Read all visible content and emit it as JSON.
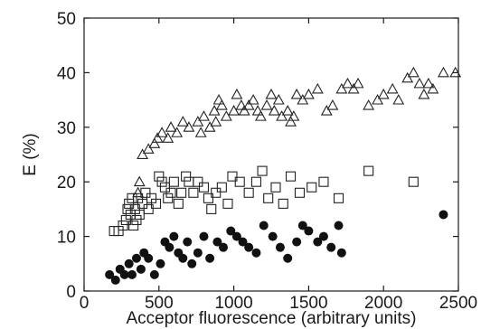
{
  "chart_data": {
    "type": "scatter",
    "xlabel": "Acceptor fluorescence (arbitrary units)",
    "ylabel": "E (%)",
    "xlim": [
      0,
      2500
    ],
    "ylim": [
      0,
      50
    ],
    "xticks": [
      "0",
      "500",
      "1000",
      "1500",
      "2000",
      "2500"
    ],
    "yticks": [
      "0",
      "10",
      "20",
      "30",
      "40",
      "50"
    ],
    "grid": false,
    "legend": "none",
    "series": [
      {
        "marker": "open-triangle",
        "points": [
          [
            360,
            18
          ],
          [
            370,
            20
          ],
          [
            390,
            25
          ],
          [
            430,
            26
          ],
          [
            470,
            27
          ],
          [
            490,
            28
          ],
          [
            520,
            29
          ],
          [
            560,
            28
          ],
          [
            580,
            30
          ],
          [
            620,
            29
          ],
          [
            660,
            31
          ],
          [
            700,
            30
          ],
          [
            760,
            31
          ],
          [
            780,
            29
          ],
          [
            800,
            32
          ],
          [
            840,
            30
          ],
          [
            870,
            33
          ],
          [
            880,
            31
          ],
          [
            900,
            35
          ],
          [
            920,
            34
          ],
          [
            950,
            32
          ],
          [
            1000,
            33
          ],
          [
            1020,
            36
          ],
          [
            1050,
            34
          ],
          [
            1070,
            33
          ],
          [
            1100,
            34
          ],
          [
            1130,
            35
          ],
          [
            1160,
            33
          ],
          [
            1180,
            32
          ],
          [
            1220,
            34
          ],
          [
            1250,
            36
          ],
          [
            1270,
            33
          ],
          [
            1300,
            35
          ],
          [
            1320,
            32
          ],
          [
            1360,
            33
          ],
          [
            1380,
            31
          ],
          [
            1400,
            32
          ],
          [
            1420,
            36
          ],
          [
            1460,
            35
          ],
          [
            1500,
            36
          ],
          [
            1560,
            37
          ],
          [
            1620,
            33
          ],
          [
            1660,
            34
          ],
          [
            1720,
            37
          ],
          [
            1760,
            38
          ],
          [
            1800,
            37
          ],
          [
            1830,
            38
          ],
          [
            1900,
            34
          ],
          [
            1960,
            35
          ],
          [
            2000,
            36
          ],
          [
            2060,
            37
          ],
          [
            2100,
            35
          ],
          [
            2160,
            39
          ],
          [
            2200,
            40
          ],
          [
            2240,
            38
          ],
          [
            2270,
            36
          ],
          [
            2300,
            38
          ],
          [
            2330,
            37
          ],
          [
            2400,
            40
          ],
          [
            2480,
            40
          ]
        ]
      },
      {
        "marker": "open-square",
        "points": [
          [
            200,
            11
          ],
          [
            230,
            11
          ],
          [
            260,
            12
          ],
          [
            280,
            13
          ],
          [
            290,
            15
          ],
          [
            300,
            16
          ],
          [
            310,
            14
          ],
          [
            320,
            17
          ],
          [
            330,
            12
          ],
          [
            340,
            15
          ],
          [
            350,
            13
          ],
          [
            360,
            17
          ],
          [
            370,
            14
          ],
          [
            390,
            16
          ],
          [
            410,
            18
          ],
          [
            430,
            15
          ],
          [
            450,
            17
          ],
          [
            480,
            16
          ],
          [
            500,
            21
          ],
          [
            520,
            20
          ],
          [
            540,
            19
          ],
          [
            560,
            17
          ],
          [
            580,
            18
          ],
          [
            600,
            20
          ],
          [
            630,
            16
          ],
          [
            650,
            18
          ],
          [
            680,
            21
          ],
          [
            700,
            20
          ],
          [
            730,
            18
          ],
          [
            760,
            20
          ],
          [
            800,
            19
          ],
          [
            830,
            17
          ],
          [
            850,
            15
          ],
          [
            880,
            18
          ],
          [
            920,
            19
          ],
          [
            960,
            16
          ],
          [
            990,
            21
          ],
          [
            1040,
            20
          ],
          [
            1100,
            18
          ],
          [
            1150,
            20
          ],
          [
            1190,
            22
          ],
          [
            1230,
            17
          ],
          [
            1280,
            19
          ],
          [
            1330,
            16
          ],
          [
            1380,
            21
          ],
          [
            1440,
            18
          ],
          [
            1520,
            19
          ],
          [
            1600,
            20
          ],
          [
            1700,
            17
          ],
          [
            1900,
            22
          ],
          [
            2200,
            20
          ]
        ]
      },
      {
        "marker": "filled-circle",
        "points": [
          [
            170,
            3
          ],
          [
            210,
            2
          ],
          [
            240,
            4
          ],
          [
            270,
            3
          ],
          [
            300,
            5
          ],
          [
            320,
            3
          ],
          [
            350,
            6
          ],
          [
            380,
            4
          ],
          [
            400,
            7
          ],
          [
            430,
            6
          ],
          [
            470,
            3
          ],
          [
            510,
            5
          ],
          [
            540,
            9
          ],
          [
            570,
            8
          ],
          [
            600,
            10
          ],
          [
            630,
            7
          ],
          [
            660,
            6
          ],
          [
            690,
            9
          ],
          [
            720,
            5
          ],
          [
            760,
            7
          ],
          [
            800,
            10
          ],
          [
            840,
            6
          ],
          [
            890,
            9
          ],
          [
            930,
            8
          ],
          [
            980,
            11
          ],
          [
            1020,
            10
          ],
          [
            1060,
            9
          ],
          [
            1100,
            8
          ],
          [
            1150,
            7
          ],
          [
            1200,
            12
          ],
          [
            1260,
            10
          ],
          [
            1310,
            8
          ],
          [
            1360,
            6
          ],
          [
            1420,
            9
          ],
          [
            1460,
            12
          ],
          [
            1500,
            11
          ],
          [
            1560,
            9
          ],
          [
            1600,
            10
          ],
          [
            1650,
            8
          ],
          [
            1700,
            12
          ],
          [
            1720,
            7
          ],
          [
            2400,
            14
          ]
        ]
      }
    ]
  }
}
